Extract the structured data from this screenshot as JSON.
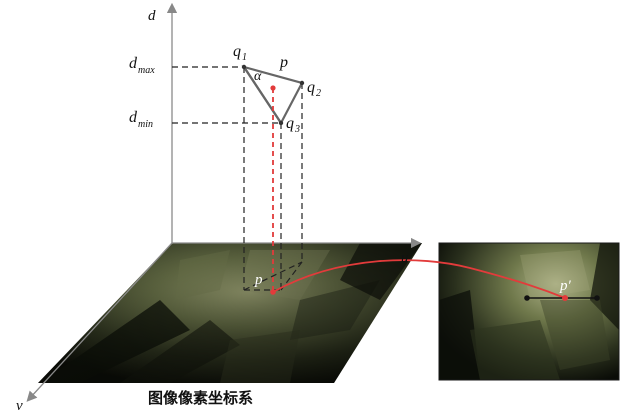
{
  "axes": {
    "d": "d",
    "u": "u",
    "v": "v"
  },
  "depth_labels": {
    "dmax_main": "d",
    "dmax_sub": "max",
    "dmin_main": "d",
    "dmin_sub": "min"
  },
  "points": {
    "q1_main": "q",
    "q1_sub": "1",
    "q2_main": "q",
    "q2_sub": "2",
    "q3_main": "q",
    "q3_sub": "3",
    "p_top": "p",
    "alpha": "α",
    "p_image": "p",
    "p_prime": "p′"
  },
  "caption": "图像像素坐标系",
  "colors": {
    "projection_red": "#e23b3b",
    "line_dark": "#222222",
    "image_tint": "#6e7a44"
  }
}
